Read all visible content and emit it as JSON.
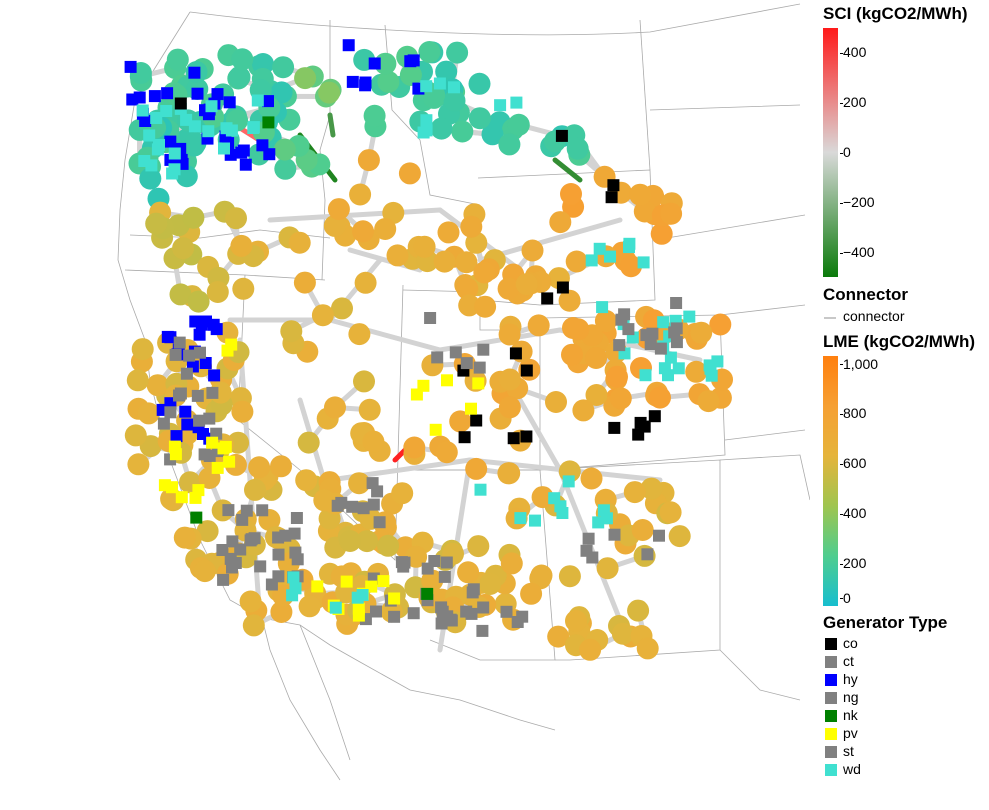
{
  "legend": {
    "sci": {
      "title": "SCI (kgCO2/MWh)",
      "ticks": [
        "400",
        "200",
        "0",
        "−200",
        "−400"
      ],
      "colors": [
        "#ff1a1a",
        "#d9d9d9",
        "#0a7a0a"
      ]
    },
    "connector": {
      "title": "Connector",
      "label": "connector",
      "color": "#c8c8c8"
    },
    "lme": {
      "title": "LME (kgCO2/MWh)",
      "ticks": [
        "1,000",
        "800",
        "600",
        "400",
        "200",
        "0"
      ],
      "colors": [
        "#ff7f0e",
        "#f6a033",
        "#e5b43b",
        "#9fc54f",
        "#4fcd8f",
        "#17becf"
      ]
    },
    "gen": {
      "title": "Generator Type",
      "items": [
        {
          "label": "co",
          "color": "#000000"
        },
        {
          "label": "ct",
          "color": "#808080"
        },
        {
          "label": "hy",
          "color": "#0000ff"
        },
        {
          "label": "ng",
          "color": "#808080"
        },
        {
          "label": "nk",
          "color": "#008000"
        },
        {
          "label": "pv",
          "color": "#ffff00"
        },
        {
          "label": "st",
          "color": "#808080"
        },
        {
          "label": "wd",
          "color": "#40e0d0"
        }
      ]
    }
  },
  "map": {
    "region": "Western United States",
    "basemap_color": "#aaaaaa",
    "line_color": "#d3d3d3",
    "highlight_lines": [
      {
        "name": "sci-negative-link-north",
        "sci": -450
      },
      {
        "name": "sci-negative-link-idaho",
        "sci": -350
      },
      {
        "name": "sci-negative-link-montana",
        "sci": -400
      },
      {
        "name": "sci-positive-link-utah",
        "sci": 480
      },
      {
        "name": "sci-positive-link-bc",
        "sci": 300
      }
    ]
  }
}
